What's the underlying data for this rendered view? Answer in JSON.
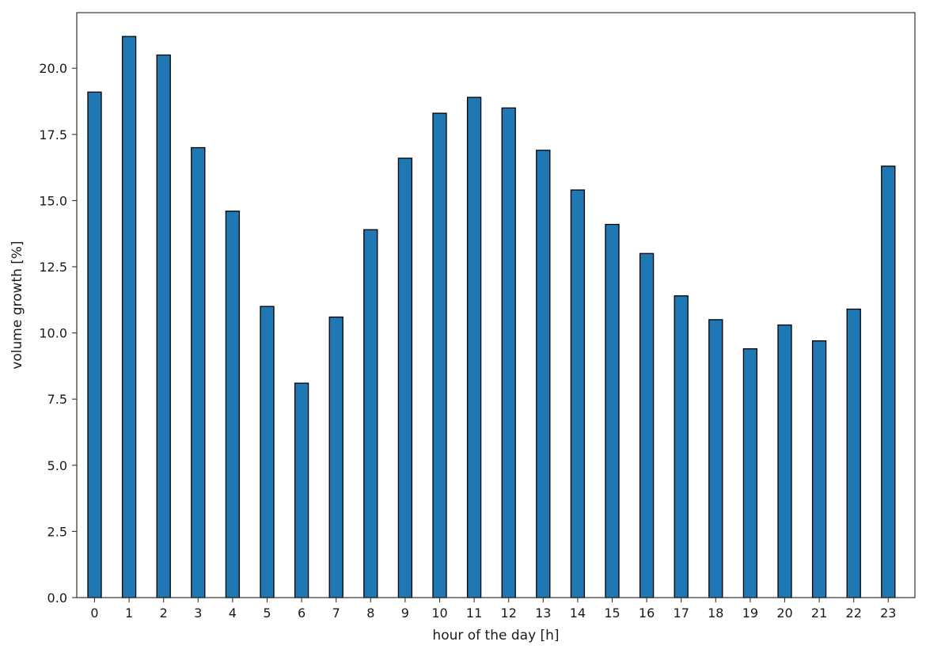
{
  "chart_data": {
    "type": "bar",
    "title": "",
    "xlabel": "hour of the day [h]",
    "ylabel": "volume growth [%]",
    "categories": [
      "0",
      "1",
      "2",
      "3",
      "4",
      "5",
      "6",
      "7",
      "8",
      "9",
      "10",
      "11",
      "12",
      "13",
      "14",
      "15",
      "16",
      "17",
      "18",
      "19",
      "20",
      "21",
      "22",
      "23"
    ],
    "values": [
      19.1,
      21.2,
      20.5,
      17.0,
      14.6,
      11.0,
      8.1,
      10.6,
      13.9,
      16.6,
      18.3,
      18.9,
      18.5,
      16.9,
      15.4,
      14.1,
      13.0,
      11.4,
      10.5,
      9.4,
      10.3,
      9.7,
      10.9,
      16.3
    ],
    "ylim": [
      0,
      22.1
    ],
    "yticks": [
      "0.0",
      "2.5",
      "5.0",
      "7.5",
      "10.0",
      "12.5",
      "15.0",
      "17.5",
      "20.0"
    ],
    "grid": false,
    "colors": {
      "bar_fill": "#1f77b4",
      "bar_edge": "#000000",
      "axis": "#333333"
    }
  }
}
